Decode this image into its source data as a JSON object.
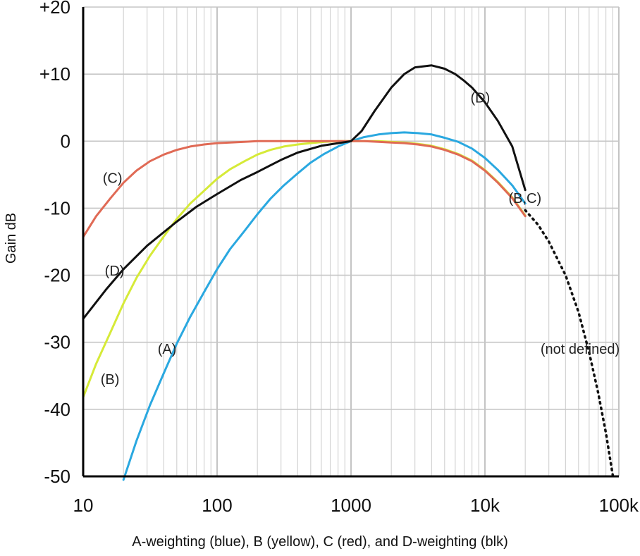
{
  "chart_data": {
    "type": "line",
    "xscale": "log",
    "xlim": [
      10,
      100000
    ],
    "ylim": [
      -50,
      20
    ],
    "ylabel": "Gain dB",
    "xlabel": "",
    "grid": true,
    "caption": "A-weighting (blue), B (yellow), C (red), and D-weighting (blk)",
    "x_ticks": [
      {
        "value": 10,
        "label": "10"
      },
      {
        "value": 100,
        "label": "100"
      },
      {
        "value": 1000,
        "label": "1000"
      },
      {
        "value": 10000,
        "label": "10k"
      },
      {
        "value": 100000,
        "label": "100k"
      }
    ],
    "y_ticks": [
      {
        "value": 20,
        "label": "+20"
      },
      {
        "value": 10,
        "label": "+10"
      },
      {
        "value": 0,
        "label": "0"
      },
      {
        "value": -10,
        "label": "-10"
      },
      {
        "value": -20,
        "label": "-20"
      },
      {
        "value": -30,
        "label": "-30"
      },
      {
        "value": -40,
        "label": "-40"
      },
      {
        "value": -50,
        "label": "-50"
      }
    ],
    "series": [
      {
        "key": "A",
        "color": "#2aa8e0",
        "x": [
          20,
          25,
          31.5,
          40,
          50,
          63,
          80,
          100,
          125,
          160,
          200,
          250,
          315,
          400,
          500,
          630,
          800,
          1000,
          1250,
          1600,
          2000,
          2500,
          3150,
          4000,
          5000,
          6300,
          8000,
          10000,
          12500,
          16000,
          20000
        ],
        "y": [
          -50.5,
          -44.7,
          -39.4,
          -34.6,
          -30.2,
          -26.2,
          -22.5,
          -19.1,
          -16.1,
          -13.4,
          -10.9,
          -8.6,
          -6.6,
          -4.8,
          -3.2,
          -1.9,
          -0.8,
          0,
          0.6,
          1.0,
          1.2,
          1.3,
          1.2,
          1.0,
          0.5,
          -0.1,
          -1.1,
          -2.5,
          -4.3,
          -6.6,
          -9.3
        ]
      },
      {
        "key": "B",
        "color": "#d6ea38",
        "x": [
          10,
          12.5,
          16,
          20,
          25,
          31.5,
          40,
          50,
          63,
          80,
          100,
          125,
          160,
          200,
          250,
          315,
          400,
          500,
          630,
          800,
          1000,
          1250,
          1600,
          2000,
          2500,
          3150,
          4000,
          5000,
          6300,
          8000,
          10000,
          12500,
          16000,
          20000
        ],
        "y": [
          -38.2,
          -33.2,
          -28.5,
          -24.2,
          -20.4,
          -17.1,
          -14.2,
          -11.6,
          -9.3,
          -7.4,
          -5.6,
          -4.2,
          -3.0,
          -2.0,
          -1.3,
          -0.8,
          -0.5,
          -0.3,
          -0.1,
          0,
          0,
          0,
          0,
          -0.1,
          -0.2,
          -0.4,
          -0.7,
          -1.2,
          -1.9,
          -2.9,
          -4.3,
          -6.1,
          -8.4,
          -11.1
        ]
      },
      {
        "key": "C",
        "color": "#e06a55",
        "x": [
          10,
          12.5,
          16,
          20,
          25,
          31.5,
          40,
          50,
          63,
          80,
          100,
          125,
          160,
          200,
          250,
          315,
          400,
          500,
          630,
          800,
          1000,
          1250,
          1600,
          2000,
          2500,
          3150,
          4000,
          5000,
          6300,
          8000,
          10000,
          12500,
          16000,
          20000
        ],
        "y": [
          -14.3,
          -11.2,
          -8.5,
          -6.2,
          -4.4,
          -3.0,
          -2.0,
          -1.3,
          -0.8,
          -0.5,
          -0.3,
          -0.2,
          -0.1,
          0,
          0,
          0,
          0,
          0,
          0,
          0,
          0,
          0,
          -0.1,
          -0.2,
          -0.3,
          -0.5,
          -0.8,
          -1.3,
          -2.0,
          -3.0,
          -4.4,
          -6.2,
          -8.5,
          -11.2
        ]
      },
      {
        "key": "D",
        "color": "#111111",
        "x": [
          10,
          15,
          20,
          30,
          50,
          70,
          100,
          150,
          200,
          300,
          400,
          600,
          1000,
          1200,
          1500,
          2000,
          2500,
          3000,
          4000,
          5000,
          6000,
          7000,
          8000,
          10000,
          12500,
          16000,
          20000
        ],
        "y": [
          -26.5,
          -22.0,
          -19.1,
          -15.6,
          -12.0,
          -9.8,
          -7.9,
          -5.8,
          -4.6,
          -2.8,
          -1.7,
          -0.7,
          0,
          1.5,
          4.5,
          8.0,
          10.0,
          11.0,
          11.3,
          10.8,
          10.0,
          9.0,
          8.0,
          5.8,
          3.0,
          -0.8,
          -7.3
        ]
      },
      {
        "key": "not defined",
        "color": "#111111",
        "dashed": true,
        "x": [
          20000,
          25000,
          30000,
          40000,
          50000,
          60000,
          70000,
          80000,
          90000
        ],
        "y": [
          -10.3,
          -12.5,
          -15.0,
          -20.0,
          -25.5,
          -31.5,
          -37.5,
          -43.5,
          -49.8
        ]
      }
    ],
    "annotations": [
      {
        "text": "(C)",
        "x": 14,
        "y": -5.5
      },
      {
        "text": "(D)",
        "x": 14.5,
        "y": -19.3
      },
      {
        "text": "(B)",
        "x": 13.5,
        "y": -35.5
      },
      {
        "text": "(A)",
        "x": 36,
        "y": -31.0
      },
      {
        "text": "(D)",
        "x": 7800,
        "y": 6.5
      },
      {
        "text": "(B,C)",
        "x": 15000,
        "y": -8.5
      },
      {
        "text": "(not defined)",
        "x": 26000,
        "y": -31.0
      }
    ]
  }
}
